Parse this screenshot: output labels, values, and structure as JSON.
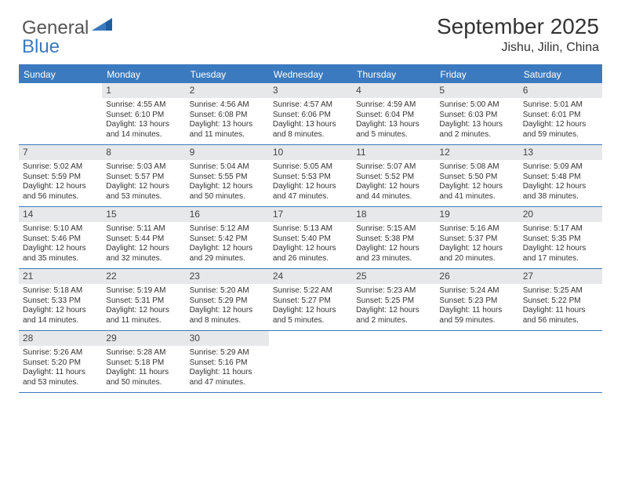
{
  "logo": {
    "text1": "General",
    "text2": "Blue",
    "accent": "#3b7abf"
  },
  "title": {
    "month": "September 2025",
    "location": "Jishu, Jilin, China"
  },
  "dow": [
    "Sunday",
    "Monday",
    "Tuesday",
    "Wednesday",
    "Thursday",
    "Friday",
    "Saturday"
  ],
  "colors": {
    "header_bg": "#3b7abf",
    "band_bg": "#e6e8ea",
    "text": "#333333"
  },
  "weeks": [
    [
      {
        "n": "",
        "sr": "",
        "ss": "",
        "dl": ""
      },
      {
        "n": "1",
        "sr": "Sunrise: 4:55 AM",
        "ss": "Sunset: 6:10 PM",
        "dl": "Daylight: 13 hours and 14 minutes."
      },
      {
        "n": "2",
        "sr": "Sunrise: 4:56 AM",
        "ss": "Sunset: 6:08 PM",
        "dl": "Daylight: 13 hours and 11 minutes."
      },
      {
        "n": "3",
        "sr": "Sunrise: 4:57 AM",
        "ss": "Sunset: 6:06 PM",
        "dl": "Daylight: 13 hours and 8 minutes."
      },
      {
        "n": "4",
        "sr": "Sunrise: 4:59 AM",
        "ss": "Sunset: 6:04 PM",
        "dl": "Daylight: 13 hours and 5 minutes."
      },
      {
        "n": "5",
        "sr": "Sunrise: 5:00 AM",
        "ss": "Sunset: 6:03 PM",
        "dl": "Daylight: 13 hours and 2 minutes."
      },
      {
        "n": "6",
        "sr": "Sunrise: 5:01 AM",
        "ss": "Sunset: 6:01 PM",
        "dl": "Daylight: 12 hours and 59 minutes."
      }
    ],
    [
      {
        "n": "7",
        "sr": "Sunrise: 5:02 AM",
        "ss": "Sunset: 5:59 PM",
        "dl": "Daylight: 12 hours and 56 minutes."
      },
      {
        "n": "8",
        "sr": "Sunrise: 5:03 AM",
        "ss": "Sunset: 5:57 PM",
        "dl": "Daylight: 12 hours and 53 minutes."
      },
      {
        "n": "9",
        "sr": "Sunrise: 5:04 AM",
        "ss": "Sunset: 5:55 PM",
        "dl": "Daylight: 12 hours and 50 minutes."
      },
      {
        "n": "10",
        "sr": "Sunrise: 5:05 AM",
        "ss": "Sunset: 5:53 PM",
        "dl": "Daylight: 12 hours and 47 minutes."
      },
      {
        "n": "11",
        "sr": "Sunrise: 5:07 AM",
        "ss": "Sunset: 5:52 PM",
        "dl": "Daylight: 12 hours and 44 minutes."
      },
      {
        "n": "12",
        "sr": "Sunrise: 5:08 AM",
        "ss": "Sunset: 5:50 PM",
        "dl": "Daylight: 12 hours and 41 minutes."
      },
      {
        "n": "13",
        "sr": "Sunrise: 5:09 AM",
        "ss": "Sunset: 5:48 PM",
        "dl": "Daylight: 12 hours and 38 minutes."
      }
    ],
    [
      {
        "n": "14",
        "sr": "Sunrise: 5:10 AM",
        "ss": "Sunset: 5:46 PM",
        "dl": "Daylight: 12 hours and 35 minutes."
      },
      {
        "n": "15",
        "sr": "Sunrise: 5:11 AM",
        "ss": "Sunset: 5:44 PM",
        "dl": "Daylight: 12 hours and 32 minutes."
      },
      {
        "n": "16",
        "sr": "Sunrise: 5:12 AM",
        "ss": "Sunset: 5:42 PM",
        "dl": "Daylight: 12 hours and 29 minutes."
      },
      {
        "n": "17",
        "sr": "Sunrise: 5:13 AM",
        "ss": "Sunset: 5:40 PM",
        "dl": "Daylight: 12 hours and 26 minutes."
      },
      {
        "n": "18",
        "sr": "Sunrise: 5:15 AM",
        "ss": "Sunset: 5:38 PM",
        "dl": "Daylight: 12 hours and 23 minutes."
      },
      {
        "n": "19",
        "sr": "Sunrise: 5:16 AM",
        "ss": "Sunset: 5:37 PM",
        "dl": "Daylight: 12 hours and 20 minutes."
      },
      {
        "n": "20",
        "sr": "Sunrise: 5:17 AM",
        "ss": "Sunset: 5:35 PM",
        "dl": "Daylight: 12 hours and 17 minutes."
      }
    ],
    [
      {
        "n": "21",
        "sr": "Sunrise: 5:18 AM",
        "ss": "Sunset: 5:33 PM",
        "dl": "Daylight: 12 hours and 14 minutes."
      },
      {
        "n": "22",
        "sr": "Sunrise: 5:19 AM",
        "ss": "Sunset: 5:31 PM",
        "dl": "Daylight: 12 hours and 11 minutes."
      },
      {
        "n": "23",
        "sr": "Sunrise: 5:20 AM",
        "ss": "Sunset: 5:29 PM",
        "dl": "Daylight: 12 hours and 8 minutes."
      },
      {
        "n": "24",
        "sr": "Sunrise: 5:22 AM",
        "ss": "Sunset: 5:27 PM",
        "dl": "Daylight: 12 hours and 5 minutes."
      },
      {
        "n": "25",
        "sr": "Sunrise: 5:23 AM",
        "ss": "Sunset: 5:25 PM",
        "dl": "Daylight: 12 hours and 2 minutes."
      },
      {
        "n": "26",
        "sr": "Sunrise: 5:24 AM",
        "ss": "Sunset: 5:23 PM",
        "dl": "Daylight: 11 hours and 59 minutes."
      },
      {
        "n": "27",
        "sr": "Sunrise: 5:25 AM",
        "ss": "Sunset: 5:22 PM",
        "dl": "Daylight: 11 hours and 56 minutes."
      }
    ],
    [
      {
        "n": "28",
        "sr": "Sunrise: 5:26 AM",
        "ss": "Sunset: 5:20 PM",
        "dl": "Daylight: 11 hours and 53 minutes."
      },
      {
        "n": "29",
        "sr": "Sunrise: 5:28 AM",
        "ss": "Sunset: 5:18 PM",
        "dl": "Daylight: 11 hours and 50 minutes."
      },
      {
        "n": "30",
        "sr": "Sunrise: 5:29 AM",
        "ss": "Sunset: 5:16 PM",
        "dl": "Daylight: 11 hours and 47 minutes."
      },
      {
        "n": "",
        "sr": "",
        "ss": "",
        "dl": ""
      },
      {
        "n": "",
        "sr": "",
        "ss": "",
        "dl": ""
      },
      {
        "n": "",
        "sr": "",
        "ss": "",
        "dl": ""
      },
      {
        "n": "",
        "sr": "",
        "ss": "",
        "dl": ""
      }
    ]
  ]
}
